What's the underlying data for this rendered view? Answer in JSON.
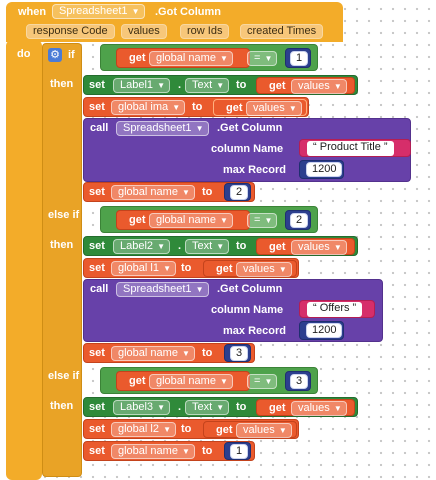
{
  "event": {
    "when": "when",
    "component": "Spreadsheet1",
    "event_name": ".Got Column",
    "params": [
      "response Code",
      "values",
      "row Ids",
      "created Times"
    ],
    "do": "do"
  },
  "ifblock": {
    "if": "if",
    "then": "then",
    "else_if": "else if"
  },
  "kw": {
    "get": "get",
    "set": "set",
    "to": "to",
    "dot": ".",
    "call": "call",
    "eq": "="
  },
  "blocks": {
    "var_global_name": "global name",
    "var_global_ima": "global ima",
    "var_global_l1": "global l1",
    "var_global_l2": "global l2",
    "var_values": "values",
    "label1": "Label1",
    "label2": "Label2",
    "label3": "Label3",
    "text_prop": "Text",
    "spreadsheet": "Spreadsheet1",
    "get_column": ".Get Column",
    "column_name": "column Name",
    "max_record": "max Record"
  },
  "values": {
    "n1": "1",
    "n2": "2",
    "n3": "3",
    "product_title": "Product Title",
    "offers": "Offers",
    "max1": "1200",
    "max2": "1200"
  },
  "colors": {
    "event": "#f3ac29",
    "control": "#e9a326",
    "logic": "#4ea24b",
    "variable": "#ea5a2d",
    "component": "#6741a9",
    "number": "#2c3f8e",
    "text": "#d62e6a"
  }
}
